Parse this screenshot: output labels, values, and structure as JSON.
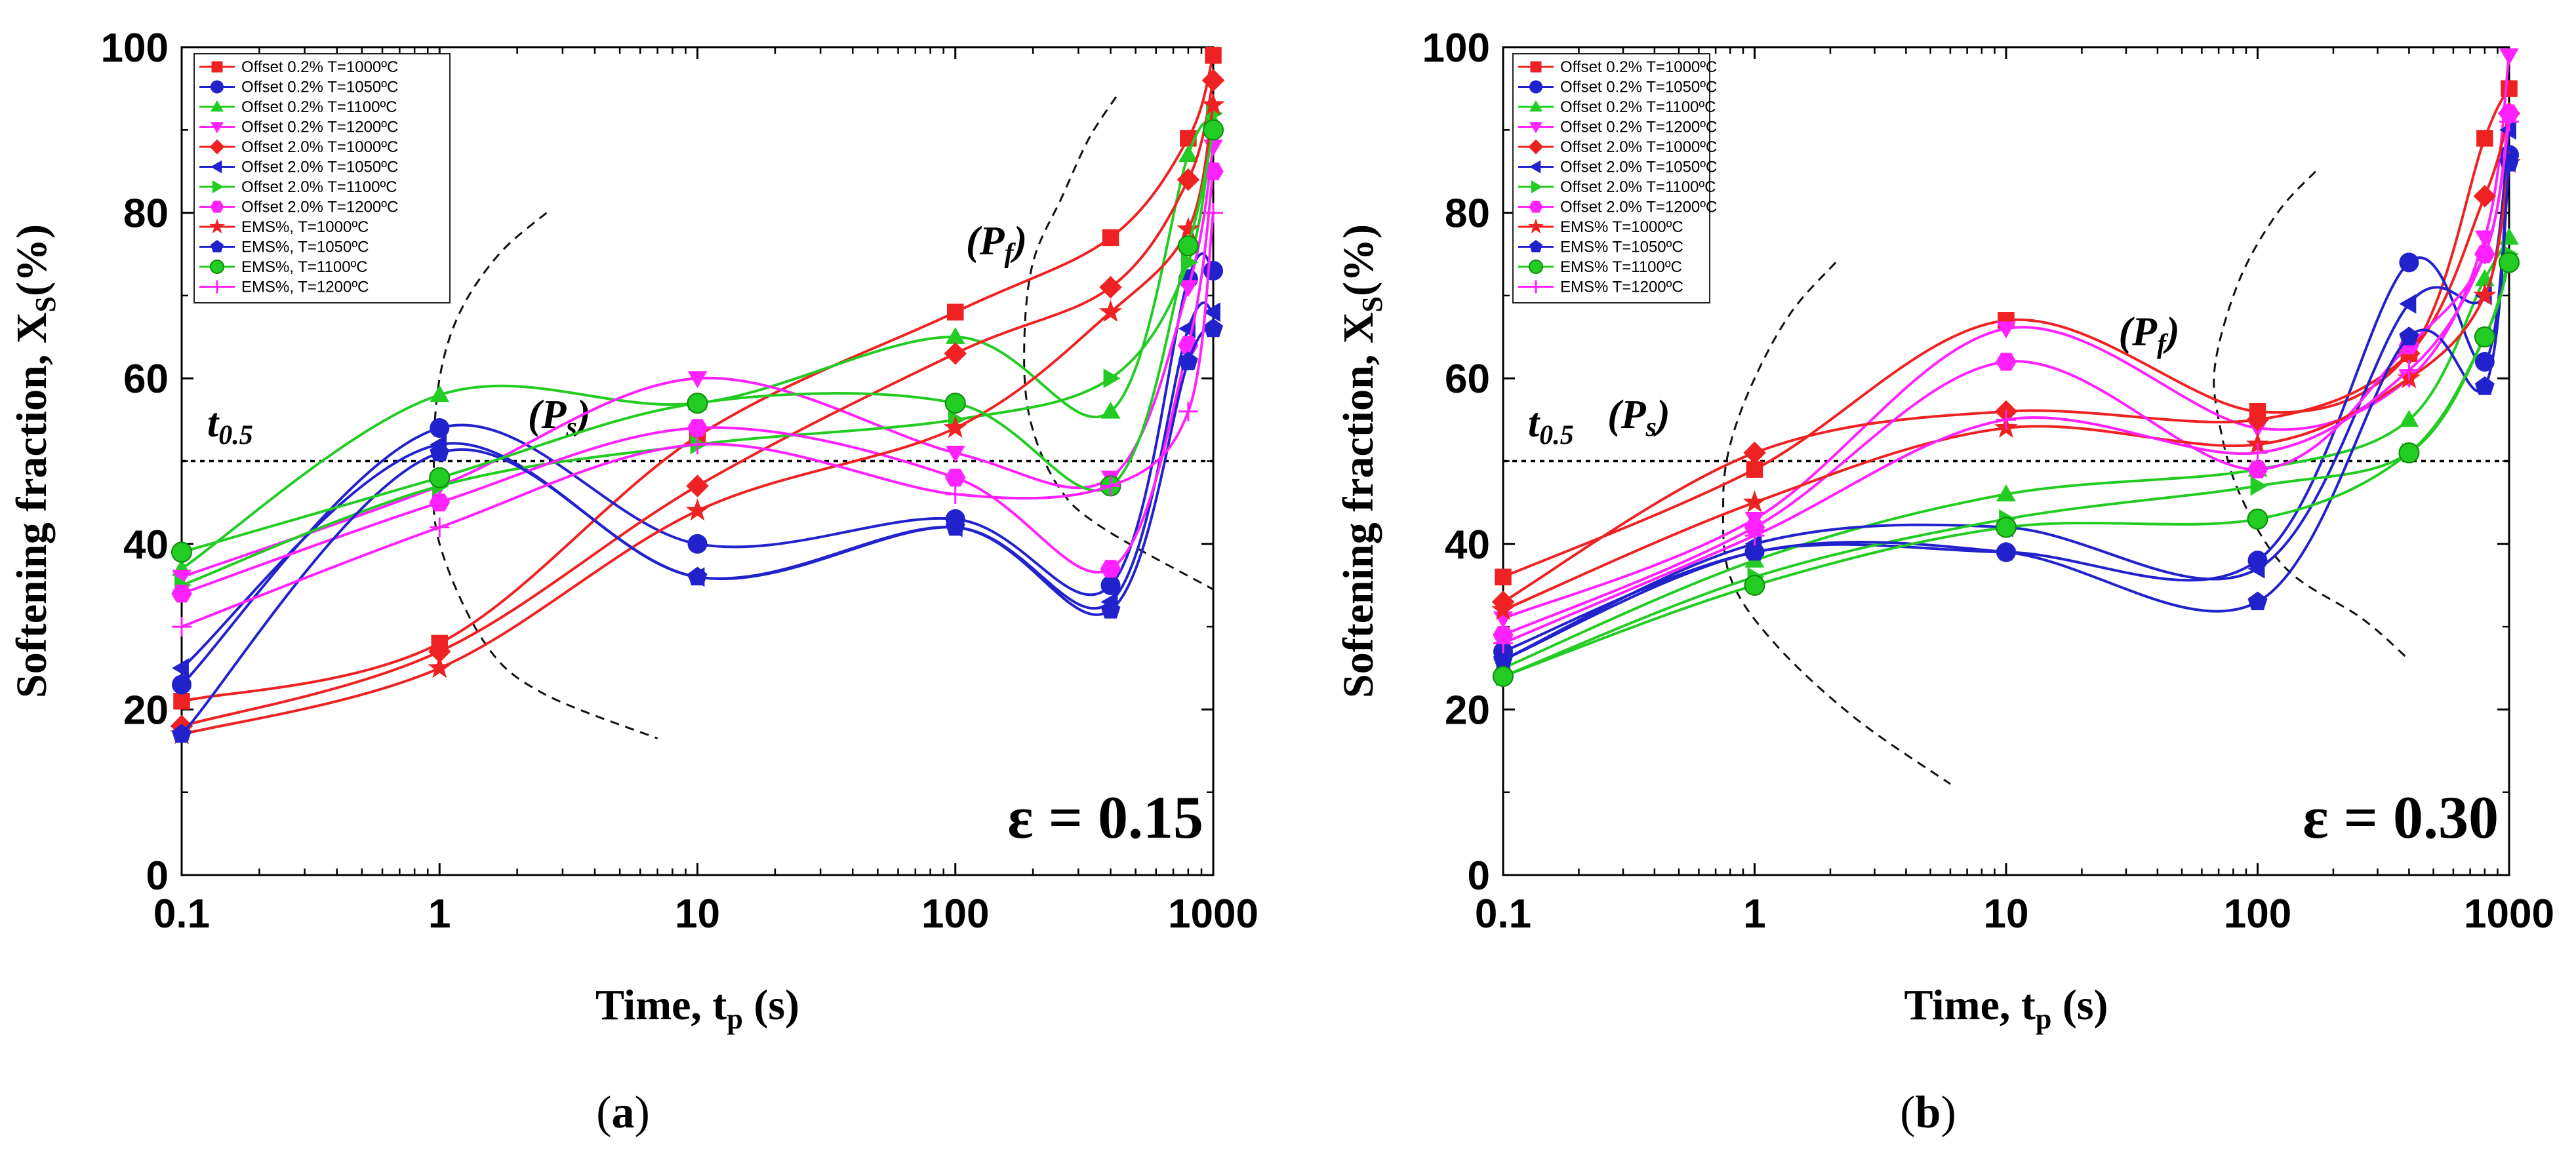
{
  "figure": {
    "colors": {
      "T1000": "#ee2222",
      "T1050": "#2222cc",
      "T1100": "#22cc22",
      "T1200": "#ff22ff",
      "axis": "#000000"
    }
  },
  "chart_data": [
    {
      "type": "scatter",
      "panel_label": "(a)",
      "strain_label": "ε = 0.15",
      "xlabel": "Time, t",
      "xlabel_sub": "p",
      "xlabel_unit": " (s)",
      "ylabel": "Softening fraction, X",
      "ylabel_sub": "S",
      "ylabel_unit": "(%)",
      "xscale": "log",
      "xlim": [
        0.1,
        1000
      ],
      "ylim": [
        0,
        100
      ],
      "x_ticks": [
        0.1,
        1,
        10,
        100,
        1000
      ],
      "x_tick_labels": [
        "0.1",
        "1",
        "10",
        "100",
        "1000"
      ],
      "y_ticks": [
        0,
        20,
        40,
        60,
        80,
        100
      ],
      "y_tick_labels": [
        "0",
        "20",
        "40",
        "60",
        "80",
        "100"
      ],
      "x": [
        0.1,
        1,
        10,
        100,
        400,
        800,
        1000
      ],
      "threshold_line": {
        "y": 50,
        "label": "t",
        "label_sub": "0.5"
      },
      "annotations": [
        {
          "text": "(P",
          "sub": "s",
          "close": ")",
          "x": 2.2,
          "y": 54
        },
        {
          "text": "(P",
          "sub": "f",
          "close": ")",
          "x": 110,
          "y": 75
        }
      ],
      "boundary_curves": [
        [
          [
            2.6,
            80
          ],
          [
            1.7,
            75
          ],
          [
            1.2,
            68
          ],
          [
            1.0,
            60
          ],
          [
            0.95,
            50
          ],
          [
            1.0,
            40
          ],
          [
            1.5,
            28
          ],
          [
            2.5,
            22
          ],
          [
            7,
            16.5
          ]
        ],
        [
          [
            420,
            94
          ],
          [
            330,
            89
          ],
          [
            260,
            82
          ],
          [
            200,
            74
          ],
          [
            185,
            64
          ],
          [
            195,
            55
          ],
          [
            250,
            47
          ],
          [
            370,
            42
          ],
          [
            1000,
            34.5
          ]
        ]
      ],
      "series": [
        {
          "name": "Offset 0.2% T=1000ºC",
          "temp": "T1000",
          "marker": "square",
          "values": [
            21,
            28,
            53,
            68,
            77,
            89,
            99
          ]
        },
        {
          "name": "Offset 0.2% T=1050ºC",
          "temp": "T1050",
          "marker": "circle",
          "values": [
            23,
            54,
            40,
            43,
            35,
            72,
            73
          ]
        },
        {
          "name": "Offset 0.2% T=1100ºC",
          "temp": "T1100",
          "marker": "triangle-up",
          "values": [
            37,
            58,
            57,
            65,
            56,
            87,
            91
          ]
        },
        {
          "name": "Offset 0.2% T=1200ºC",
          "temp": "T1200",
          "marker": "triangle-down",
          "values": [
            36,
            47,
            60,
            51,
            48,
            71,
            88
          ]
        },
        {
          "name": "Offset 2.0% T=1000ºC",
          "temp": "T1000",
          "marker": "diamond",
          "values": [
            18,
            27,
            47,
            63,
            71,
            84,
            96
          ]
        },
        {
          "name": "Offset 2.0% T=1050ºC",
          "temp": "T1050",
          "marker": "triangle-left",
          "values": [
            25,
            52,
            36,
            42,
            33,
            66,
            68
          ]
        },
        {
          "name": "Offset 2.0% T=1100ºC",
          "temp": "T1100",
          "marker": "triangle-right",
          "values": [
            35,
            47,
            52,
            55,
            60,
            74,
            92
          ]
        },
        {
          "name": "Offset 2.0% T=1200ºC",
          "temp": "T1200",
          "marker": "hexagon",
          "values": [
            34,
            45,
            54,
            48,
            37,
            64,
            85
          ]
        },
        {
          "name": "EMS%, T=1000ºC",
          "temp": "T1000",
          "marker": "star",
          "values": [
            17,
            25,
            44,
            54,
            68,
            78,
            93
          ]
        },
        {
          "name": "EMS%, T=1050ºC",
          "temp": "T1050",
          "marker": "pentagon",
          "values": [
            17,
            51,
            36,
            42,
            32,
            62,
            66
          ]
        },
        {
          "name": "EMS%, T=1100ºC",
          "temp": "T1100",
          "marker": "circle-outline",
          "values": [
            39,
            48,
            57,
            57,
            47,
            76,
            90
          ]
        },
        {
          "name": "EMS%, T=1200ºC",
          "temp": "T1200",
          "marker": "plus",
          "values": [
            30,
            42,
            52,
            46,
            47,
            56,
            80
          ]
        }
      ]
    },
    {
      "type": "scatter",
      "panel_label": "(b)",
      "strain_label": "ε = 0.30",
      "xlabel": "Time, t",
      "xlabel_sub": "p",
      "xlabel_unit": " (s)",
      "ylabel": "Softening fraction, X",
      "ylabel_sub": "S",
      "ylabel_unit": "(%)",
      "xscale": "log",
      "xlim": [
        0.1,
        1000
      ],
      "ylim": [
        0,
        100
      ],
      "x_ticks": [
        0.1,
        1,
        10,
        100,
        1000
      ],
      "x_tick_labels": [
        "0.1",
        "1",
        "10",
        "100",
        "1000"
      ],
      "y_ticks": [
        0,
        20,
        40,
        60,
        80,
        100
      ],
      "y_tick_labels": [
        "0",
        "20",
        "40",
        "60",
        "80",
        "100"
      ],
      "x": [
        0.1,
        1,
        10,
        100,
        400,
        800,
        1000
      ],
      "threshold_line": {
        "y": 50,
        "label": "t",
        "label_sub": "0.5"
      },
      "annotations": [
        {
          "text": "(P",
          "sub": "s",
          "close": ")",
          "x": 0.26,
          "y": 54
        },
        {
          "text": "(P",
          "sub": "f",
          "close": ")",
          "x": 28,
          "y": 64
        }
      ],
      "boundary_curves": [
        [
          [
            2.1,
            74
          ],
          [
            1.4,
            68
          ],
          [
            1.0,
            60
          ],
          [
            0.8,
            52
          ],
          [
            0.75,
            45
          ],
          [
            0.8,
            36
          ],
          [
            1.2,
            28
          ],
          [
            2.5,
            19
          ],
          [
            6,
            11
          ]
        ],
        [
          [
            170,
            85
          ],
          [
            120,
            80
          ],
          [
            85,
            72
          ],
          [
            68,
            62
          ],
          [
            70,
            55
          ],
          [
            85,
            46
          ],
          [
            130,
            37
          ],
          [
            260,
            31
          ],
          [
            400,
            26
          ]
        ]
      ],
      "series": [
        {
          "name": "Offset 0.2% T=1000ºC",
          "temp": "T1000",
          "marker": "square",
          "values": [
            36,
            49,
            67,
            56,
            63,
            89,
            95
          ]
        },
        {
          "name": "Offset 0.2% T=1050ºC",
          "temp": "T1050",
          "marker": "circle",
          "values": [
            27,
            39,
            39,
            38,
            74,
            62,
            87
          ]
        },
        {
          "name": "Offset 0.2% T=1100ºC",
          "temp": "T1100",
          "marker": "triangle-up",
          "values": [
            25,
            38,
            46,
            49,
            55,
            72,
            77
          ]
        },
        {
          "name": "Offset 0.2% T=1200ºC",
          "temp": "T1200",
          "marker": "triangle-down",
          "values": [
            31,
            43,
            66,
            54,
            60,
            77,
            99
          ]
        },
        {
          "name": "Offset 2.0% T=1000ºC",
          "temp": "T1000",
          "marker": "diamond",
          "values": [
            33,
            51,
            56,
            55,
            63,
            82,
            92
          ]
        },
        {
          "name": "Offset 2.0% T=1050ºC",
          "temp": "T1050",
          "marker": "triangle-left",
          "values": [
            26,
            40,
            42,
            37,
            69,
            70,
            90
          ]
        },
        {
          "name": "Offset 2.0% T=1100ºC",
          "temp": "T1100",
          "marker": "triangle-right",
          "values": [
            24,
            36,
            43,
            47,
            51,
            65,
            75
          ]
        },
        {
          "name": "Offset 2.0% T=1200ºC",
          "temp": "T1200",
          "marker": "hexagon",
          "values": [
            29,
            42,
            62,
            49,
            64,
            75,
            92
          ]
        },
        {
          "name": "EMS% T=1000ºC",
          "temp": "T1000",
          "marker": "star",
          "values": [
            32,
            45,
            54,
            52,
            60,
            70,
            86
          ]
        },
        {
          "name": "EMS% T=1050ºC",
          "temp": "T1050",
          "marker": "pentagon",
          "values": [
            26,
            39,
            39,
            33,
            65,
            59,
            86
          ]
        },
        {
          "name": "EMS% T=1100ºC",
          "temp": "T1100",
          "marker": "circle-outline",
          "values": [
            24,
            35,
            42,
            43,
            51,
            65,
            74
          ]
        },
        {
          "name": "EMS% T=1200ºC",
          "temp": "T1200",
          "marker": "plus",
          "values": [
            28,
            41,
            55,
            51,
            61,
            75,
            91
          ]
        }
      ]
    }
  ]
}
